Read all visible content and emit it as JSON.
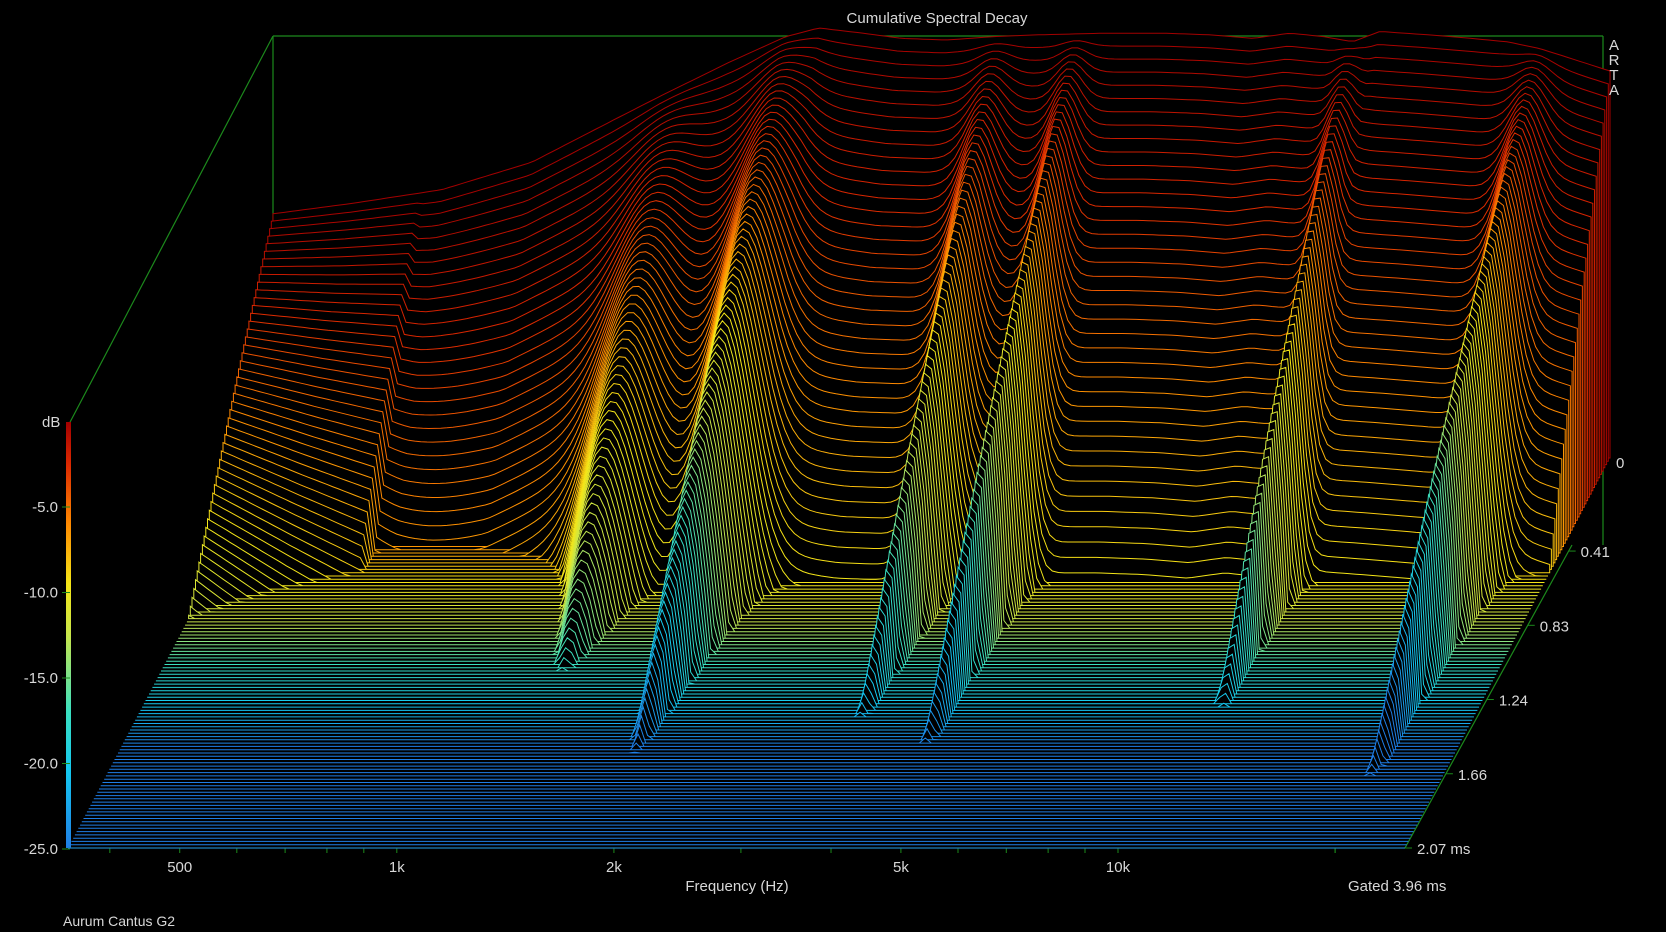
{
  "chart_data": {
    "type": "waterfall",
    "title": "Cumulative Spectral Decay",
    "brand": "ARTA",
    "xlabel": "Frequency (Hz)",
    "x_scale": "log",
    "x_range_hz": [
      350,
      25000
    ],
    "x_ticks": [
      {
        "hz": 500,
        "label": "500"
      },
      {
        "hz": 1000,
        "label": "1k"
      },
      {
        "hz": 2000,
        "label": "2k"
      },
      {
        "hz": 5000,
        "label": "5k"
      },
      {
        "hz": 10000,
        "label": "10k"
      }
    ],
    "ylabel": "dB",
    "ylim": [
      -25,
      0
    ],
    "y_ticks": [
      "-5.0",
      "-10.0",
      "-15.0",
      "-20.0",
      "-25.0"
    ],
    "zlabel": "ms",
    "time_ticks": [
      "0.41",
      "0.83",
      "1.24",
      "1.66",
      "2.07 ms"
    ],
    "time_range_ms": [
      0,
      2.07
    ],
    "colorbar_zero_label": "0",
    "gated_label": "Gated 3.96 ms",
    "device_label": "Aurum Cantus G2",
    "slices": 120,
    "initial_response": {
      "hz": [
        350,
        450,
        600,
        800,
        1000,
        1200,
        1500,
        1800,
        2000,
        2300,
        2600,
        3000,
        3500,
        4000,
        5000,
        6000,
        7000,
        8000,
        9000,
        10000,
        11000,
        12000,
        14000,
        16000,
        18000,
        20000,
        25000
      ],
      "db": [
        -10.8,
        -10.2,
        -9.4,
        -7.8,
        -5.7,
        -4.0,
        -2.0,
        -0.5,
        0.0,
        -0.3,
        -0.6,
        -0.7,
        -0.5,
        -0.4,
        -0.3,
        -0.3,
        -0.4,
        -0.6,
        -0.3,
        -0.5,
        -0.8,
        -0.2,
        -0.4,
        -0.6,
        -0.8,
        -1.2,
        -2.5
      ]
    },
    "colors": {
      "frame": "#1c8a1c",
      "text": "#d8d8d8",
      "floor": "#2a6ee8",
      "colormap": [
        "#1f7ee6",
        "#14c8f0",
        "#3ae0c0",
        "#c8e64a",
        "#f5e617",
        "#ff8a00",
        "#dc2800",
        "#a30000"
      ]
    }
  }
}
